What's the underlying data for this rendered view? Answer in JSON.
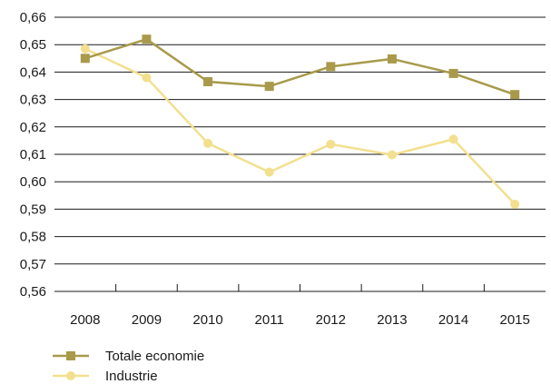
{
  "chart_data": {
    "type": "line",
    "title": "",
    "xlabel": "",
    "ylabel": "",
    "categories": [
      "2008",
      "2009",
      "2010",
      "2011",
      "2012",
      "2013",
      "2014",
      "2015"
    ],
    "y_ticks": [
      "0,56",
      "0,57",
      "0,58",
      "0,59",
      "0,60",
      "0,61",
      "0,62",
      "0,63",
      "0,64",
      "0,65",
      "0,66"
    ],
    "ylim": [
      0.56,
      0.66
    ],
    "grid": "horizontal",
    "legend_position": "bottom-left",
    "series": [
      {
        "name": "Totale economie",
        "color": "#a89a4a",
        "marker": "square",
        "values": [
          0.645,
          0.652,
          0.6365,
          0.6348,
          0.642,
          0.6448,
          0.6395,
          0.6318
        ]
      },
      {
        "name": "Industrie",
        "color": "#f2e08e",
        "marker": "circle",
        "values": [
          0.6485,
          0.638,
          0.614,
          0.6035,
          0.6137,
          0.6098,
          0.6155,
          0.5918
        ]
      }
    ]
  }
}
